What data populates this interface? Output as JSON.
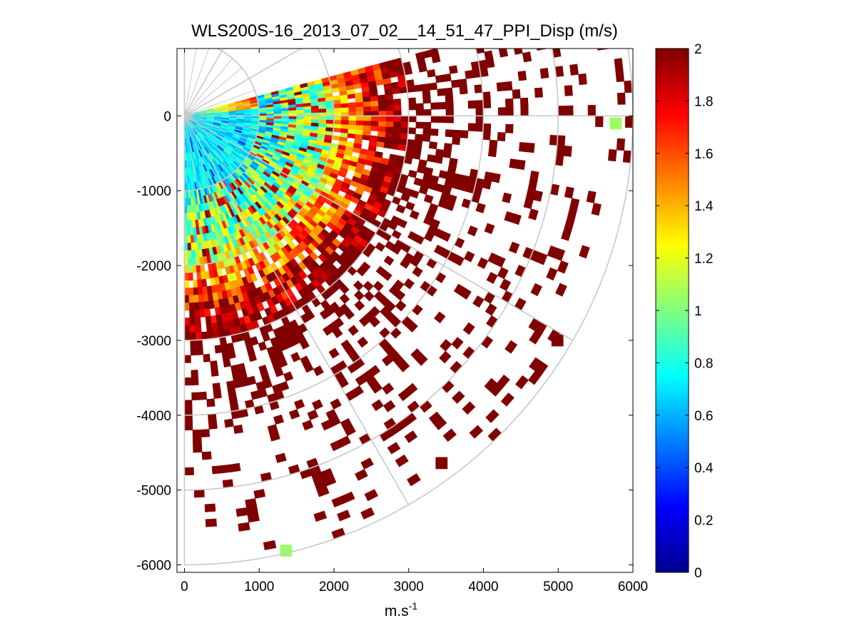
{
  "chart_data": {
    "type": "heatmap",
    "title": "WLS200S-16_2013_07_02__14_51_47_PPI_Disp (m/s)",
    "xlabel": "m.s",
    "xlabel_superscript": "-1",
    "ylabel": "",
    "xlim": [
      -100,
      6000
    ],
    "ylim": [
      -6100,
      900
    ],
    "x_ticks": [
      0,
      1000,
      2000,
      3000,
      4000,
      5000,
      6000
    ],
    "y_ticks": [
      0,
      -1000,
      -2000,
      -3000,
      -4000,
      -5000,
      -6000
    ],
    "x_tick_labels": [
      "0",
      "1000",
      "2000",
      "3000",
      "4000",
      "5000",
      "6000"
    ],
    "y_tick_labels": [
      "0",
      "-1000",
      "-2000",
      "-3000",
      "-4000",
      "-5000",
      "-6000"
    ],
    "colorbar": {
      "colormap": "jet",
      "clim": [
        0,
        2
      ],
      "ticks": [
        0,
        0.2,
        0.4,
        0.6,
        0.8,
        1,
        1.2,
        1.4,
        1.6,
        1.8,
        2
      ],
      "tick_labels": [
        "0",
        "0.2",
        "0.4",
        "0.6",
        "0.8",
        "1",
        "1.2",
        "1.4",
        "1.6",
        "1.8",
        "2"
      ]
    },
    "polar_grid": {
      "origin": [
        0,
        0
      ],
      "range_rings_m": [
        1000,
        2000,
        3000,
        4000,
        5000,
        6000
      ],
      "spokes_deg": [
        -90,
        -60,
        -30,
        0,
        30,
        60,
        90
      ],
      "grid_color": "#c8c8c8"
    },
    "scan": {
      "azimuth_deg_ccw_from_east": [
        -90,
        15
      ],
      "range_m": [
        0,
        6000
      ],
      "gate_m": 100,
      "beam_step_deg": 1.5
    },
    "zones": [
      {
        "range_m": [
          0,
          1000
        ],
        "typical_disp": 0.75
      },
      {
        "range_m": [
          1000,
          2000
        ],
        "typical_disp": 0.95
      },
      {
        "range_m": [
          2000,
          3000
        ],
        "typical_disp": 1.7
      },
      {
        "range_m": [
          3000,
          6000
        ],
        "typical_disp": 2.0,
        "note": "sparse saturated (>=2) cells"
      }
    ],
    "isolated_cells": [
      {
        "x": 5770,
        "y": -100,
        "value": 1.05
      },
      {
        "x": 1360,
        "y": -5810,
        "value": 1.05
      },
      {
        "x": 3440,
        "y": -4640,
        "value": 2.0
      },
      {
        "x": 4990,
        "y": -3000,
        "value": 2.0
      }
    ]
  }
}
